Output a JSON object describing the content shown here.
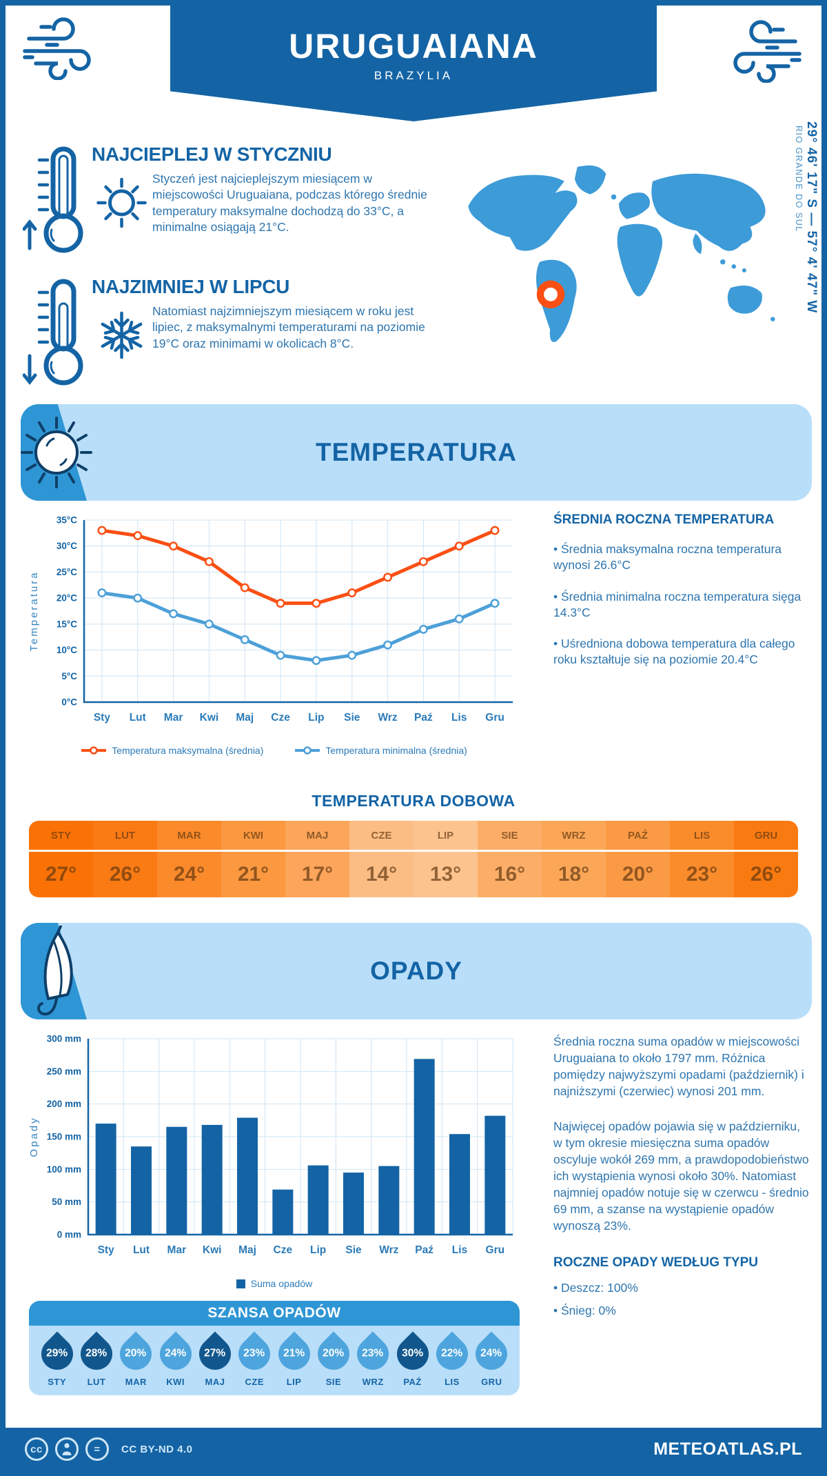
{
  "colors": {
    "primary": "#1464a5",
    "band_light": "#b9def9",
    "accent_mid": "#2e96d5",
    "map_blue": "#3d9bd8",
    "marker_orange": "#fb4f14",
    "line_max": "#fb4f14",
    "line_min": "#4da0d8",
    "bar": "#1464a5",
    "grid": "#cfe4f5",
    "body_text": "#2e75ae",
    "drop_dark": "#11578d",
    "drop_light": "#4ea5dd"
  },
  "header": {
    "title": "URUGUAIANA",
    "subtitle": "BRAZYLIA"
  },
  "location": {
    "coordinates": "29° 46' 17\" S — 57° 4' 47\" W",
    "region": "RIO GRANDE DO SUL"
  },
  "highlights": [
    {
      "title": "NAJCIEPLEJ W STYCZNIU",
      "text": "Styczeń jest najcieplejszym miesiącem w miejscowości Uruguaiana, podczas którego średnie temperatury maksymalne dochodzą do 33°C, a minimalne osiągają 21°C."
    },
    {
      "title": "NAJZIMNIEJ W LIPCU",
      "text": "Natomiast najzimniejszym miesiącem w roku jest lipiec, z maksymalnymi temperaturami na poziomie 19°C oraz minimami w okolicach 8°C."
    }
  ],
  "temperature": {
    "section_title": "TEMPERATURA",
    "annual_heading": "ŚREDNIA ROCZNA TEMPERATURA",
    "annual_bullets": [
      "Średnia maksymalna roczna temperatura wynosi 26.6°C",
      "Średnia minimalna roczna temperatura sięga 14.3°C",
      "Uśredniona dobowa temperatura dla całego roku kształtuje się na poziomie 20.4°C"
    ],
    "daily_heading": "TEMPERATURA DOBOWA",
    "daily": {
      "months": [
        "STY",
        "LUT",
        "MAR",
        "KWI",
        "MAJ",
        "CZE",
        "LIP",
        "SIE",
        "WRZ",
        "PAŹ",
        "LIS",
        "GRU"
      ],
      "values": [
        "27°",
        "26°",
        "24°",
        "21°",
        "17°",
        "14°",
        "13°",
        "16°",
        "18°",
        "20°",
        "23°",
        "26°"
      ],
      "cell_colors": [
        "#fa7206",
        "#fa7a14",
        "#fb8a2b",
        "#fb9840",
        "#fca55b",
        "#fcbd85",
        "#fdc38e",
        "#fcae68",
        "#fca758",
        "#fb9a44",
        "#fb8c2b",
        "#fa7a12"
      ]
    }
  },
  "precipitation": {
    "section_title": "OPADY",
    "paragraphs": [
      "Średnia roczna suma opadów w miejscowości Uruguaiana to około 1797 mm. Różnica pomiędzy najwyższymi opadami (październik) i najniższymi (czerwiec) wynosi 201 mm.",
      "Najwięcej opadów pojawia się w październiku, w tym okresie miesięczna suma opadów oscyluje wokół 269 mm, a prawdopodobieństwo ich wystąpienia wynosi około 30%. Natomiast najmniej opadów notuje się w czerwcu - średnio 69 mm, a szanse na wystąpienie opadów wynoszą 23%."
    ],
    "type_heading": "ROCZNE OPADY WEDŁUG TYPU",
    "type_bullets": [
      "Deszcz: 100%",
      "Śnieg: 0%"
    ],
    "chance": {
      "heading": "SZANSA OPADÓW",
      "months": [
        "STY",
        "LUT",
        "MAR",
        "KWI",
        "MAJ",
        "CZE",
        "LIP",
        "SIE",
        "WRZ",
        "PAŹ",
        "LIS",
        "GRU"
      ],
      "values": [
        "29%",
        "28%",
        "20%",
        "24%",
        "27%",
        "23%",
        "21%",
        "20%",
        "23%",
        "30%",
        "22%",
        "24%"
      ],
      "dark": [
        true,
        true,
        false,
        false,
        true,
        false,
        false,
        false,
        false,
        true,
        false,
        false
      ]
    }
  },
  "chart_data": [
    {
      "type": "line",
      "title": "TEMPERATURA",
      "categories": [
        "Sty",
        "Lut",
        "Mar",
        "Kwi",
        "Maj",
        "Cze",
        "Lip",
        "Sie",
        "Wrz",
        "Paź",
        "Lis",
        "Gru"
      ],
      "series": [
        {
          "name": "Temperatura maksymalna (średnia)",
          "color": "#fb4f14",
          "values": [
            33,
            32,
            30,
            27,
            22,
            19,
            19,
            21,
            24,
            27,
            30,
            33
          ]
        },
        {
          "name": "Temperatura minimalna (średnia)",
          "color": "#4da0d8",
          "values": [
            21,
            20,
            17,
            15,
            12,
            9,
            8,
            9,
            11,
            14,
            16,
            19
          ]
        }
      ],
      "xlabel": "",
      "ylabel": "Temperatura",
      "ylim": [
        0,
        35
      ],
      "ytick_step": 5,
      "ytick_suffix": "°C",
      "grid": true,
      "legend_position": "bottom"
    },
    {
      "type": "bar",
      "title": "OPADY",
      "categories": [
        "Sty",
        "Lut",
        "Mar",
        "Kwi",
        "Maj",
        "Cze",
        "Lip",
        "Sie",
        "Wrz",
        "Paź",
        "Lis",
        "Gru"
      ],
      "values": [
        170,
        135,
        165,
        168,
        179,
        69,
        106,
        95,
        105,
        269,
        154,
        182
      ],
      "legend": "Suma opadów",
      "xlabel": "",
      "ylabel": "Opady",
      "ylim": [
        0,
        300
      ],
      "ytick_step": 50,
      "ytick_suffix": " mm",
      "bar_color": "#1464a5",
      "grid": true,
      "legend_position": "bottom"
    }
  ],
  "footer": {
    "badges": [
      "cc",
      "person",
      "="
    ],
    "license": "CC BY-ND 4.0",
    "site": "METEOATLAS.PL"
  }
}
